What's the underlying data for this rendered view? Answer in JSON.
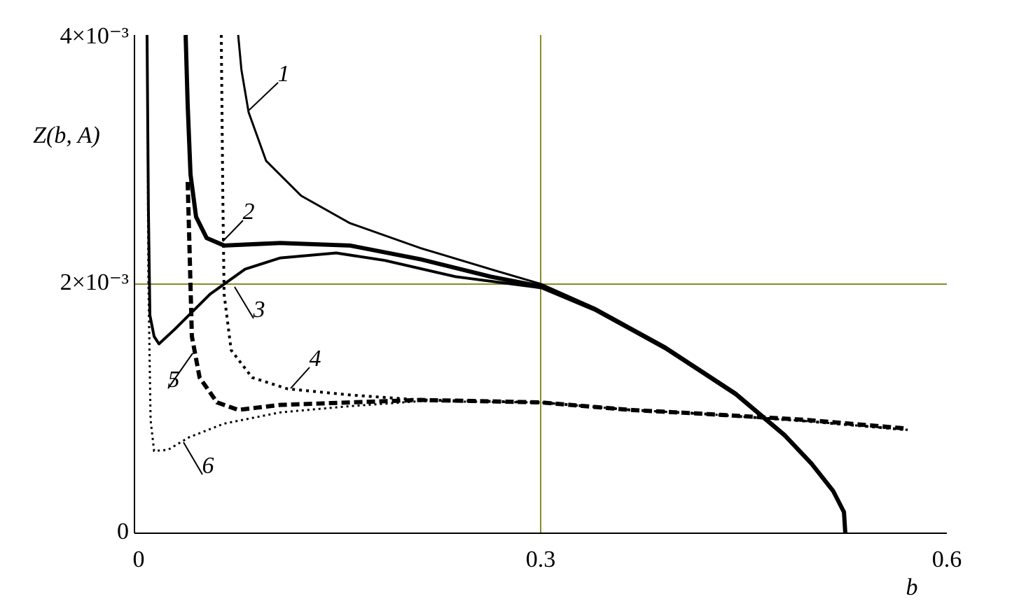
{
  "chart_data": {
    "type": "line",
    "xlabel": "b",
    "ylabel": "Z(b, A)",
    "xlim": [
      0,
      0.6
    ],
    "ylim": [
      0,
      0.004
    ],
    "xticks": [
      0,
      0.3,
      0.6
    ],
    "yticks": [
      0,
      {
        "value": 0.002,
        "label": "2×10⁻³"
      },
      {
        "value": 0.004,
        "label": "4×10⁻³"
      }
    ],
    "grid_color": "#8a8a2a",
    "series": [
      {
        "name": "1",
        "color": "#000",
        "style": "solid",
        "width": 3,
        "x": [
          0.0766,
          0.079,
          0.0843,
          0.0972,
          0.123,
          0.159,
          0.211,
          0.263,
          0.3005,
          0.34,
          0.392,
          0.444,
          0.48,
          0.5,
          0.516,
          0.524,
          0.525
        ],
        "values": [
          0.004,
          0.00372,
          0.00338,
          0.00299,
          0.00271,
          0.00249,
          0.00229,
          0.00212,
          0.002,
          0.00181,
          0.0015,
          0.00113,
          0.0008,
          0.00057,
          0.00035,
          0.00018,
          0
        ]
      },
      {
        "name": "2",
        "color": "#000",
        "style": "solid",
        "width": 6,
        "x": [
          0.0378,
          0.0393,
          0.0414,
          0.0455,
          0.0533,
          0.0662,
          0.1076,
          0.159,
          0.211,
          0.263,
          0.3005,
          0.34,
          0.392,
          0.444,
          0.48,
          0.5,
          0.516,
          0.524,
          0.525
        ],
        "values": [
          0.004,
          0.00344,
          0.00288,
          0.00254,
          0.00237,
          0.00231,
          0.00233,
          0.00231,
          0.0022,
          0.00206,
          0.00198,
          0.0018,
          0.00149,
          0.00112,
          0.00079,
          0.00056,
          0.00034,
          0.00017,
          0
        ]
      },
      {
        "name": "3",
        "color": "#000",
        "style": "solid",
        "width": 4,
        "x": [
          0.0093,
          0.0103,
          0.0114,
          0.0145,
          0.0181,
          0.03,
          0.0559,
          0.0817,
          0.1076,
          0.149,
          0.185,
          0.237,
          0.3005,
          0.34,
          0.392,
          0.444,
          0.48,
          0.5,
          0.516,
          0.524,
          0.525
        ],
        "values": [
          0.004,
          0.0026,
          0.00175,
          0.00158,
          0.00152,
          0.00164,
          0.00192,
          0.00212,
          0.00221,
          0.00225,
          0.00219,
          0.00206,
          0.00197,
          0.00179,
          0.00148,
          0.00111,
          0.00078,
          0.00055,
          0.00033,
          0.00016,
          0
        ]
      },
      {
        "name": "4",
        "color": "#000",
        "style": "dotted",
        "width": 4,
        "x": [
          0.0641,
          0.0652,
          0.0662,
          0.0714,
          0.0869,
          0.1128,
          0.159,
          0.211,
          0.3005,
          0.366,
          0.418,
          0.496,
          0.571
        ],
        "values": [
          0.004,
          0.00276,
          0.00192,
          0.00147,
          0.00125,
          0.00116,
          0.00111,
          0.00107,
          0.00105,
          0.00099,
          0.00096,
          0.0009,
          0.00083
        ]
      },
      {
        "name": "5",
        "color": "#000",
        "style": "dashed",
        "width": 6,
        "x": [
          0.0393,
          0.0403,
          0.0424,
          0.0481,
          0.061,
          0.0766,
          0.1076,
          0.159,
          0.211,
          0.3005,
          0.366,
          0.418,
          0.496,
          0.571
        ],
        "values": [
          0.00282,
          0.00243,
          0.00158,
          0.00125,
          0.00105,
          0.00099,
          0.00103,
          0.00105,
          0.00107,
          0.00105,
          0.00099,
          0.00096,
          0.00091,
          0.00084
        ]
      },
      {
        "name": "6",
        "color": "#000",
        "style": "finedot",
        "width": 3,
        "x": [
          0.0093,
          0.0103,
          0.0119,
          0.0145,
          0.0248,
          0.0403,
          0.0662,
          0.1076,
          0.159,
          0.211,
          0.3005,
          0.366,
          0.418,
          0.496,
          0.571
        ],
        "values": [
          0.004,
          0.00203,
          0.00091,
          0.00066,
          0.00067,
          0.00077,
          0.00088,
          0.00097,
          0.00102,
          0.00106,
          0.00105,
          0.00099,
          0.00096,
          0.0009,
          0.00083
        ]
      }
    ]
  }
}
